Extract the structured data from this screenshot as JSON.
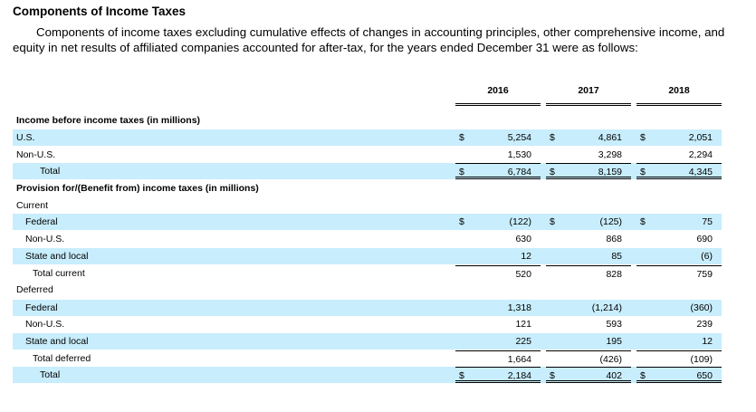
{
  "title": "Components of Income Taxes",
  "intro": "Components of income taxes excluding cumulative effects of changes in accounting principles, other comprehensive income, and equity in net results of affiliated companies accounted for after-tax, for the years ended December 31 were as follows:",
  "years": [
    "2016",
    "2017",
    "2018"
  ],
  "colors": {
    "highlight": "#c8edfc"
  },
  "rows": [
    {
      "label": "Income before income taxes (in millions)",
      "style": "bold",
      "hl": false,
      "values": []
    },
    {
      "label": "U.S.",
      "hl": true,
      "currency": "$",
      "values": [
        "5,254",
        "4,861",
        "2,051"
      ]
    },
    {
      "label": "Non-U.S.",
      "hl": false,
      "values": [
        "1,530",
        "3,298",
        "2,294"
      ]
    },
    {
      "label": "Total",
      "indent": 3,
      "hl": true,
      "currency": "$",
      "values": [
        "6,784",
        "8,159",
        "4,345"
      ],
      "line_above": true,
      "double_below": true
    },
    {
      "label": "Provision for/(Benefit from) income taxes (in millions)",
      "style": "bold",
      "hl": false,
      "values": []
    },
    {
      "label": "Current",
      "hl": false,
      "values": []
    },
    {
      "label": "Federal",
      "indent": 1,
      "hl": true,
      "currency": "$",
      "values": [
        "(122)",
        "(125)",
        "75"
      ]
    },
    {
      "label": "Non-U.S.",
      "indent": 1,
      "hl": false,
      "values": [
        "630",
        "868",
        "690"
      ]
    },
    {
      "label": "State and local",
      "indent": 1,
      "hl": true,
      "values": [
        "12",
        "85",
        "(6)"
      ]
    },
    {
      "label": "Total current",
      "indent": 2,
      "hl": false,
      "values": [
        "520",
        "828",
        "759"
      ],
      "line_above": true
    },
    {
      "label": "Deferred",
      "hl": false,
      "values": []
    },
    {
      "label": "Federal",
      "indent": 1,
      "hl": true,
      "values": [
        "1,318",
        "(1,214)",
        "(360)"
      ]
    },
    {
      "label": "Non-U.S.",
      "indent": 1,
      "hl": false,
      "values": [
        "121",
        "593",
        "239"
      ]
    },
    {
      "label": "State and local",
      "indent": 1,
      "hl": true,
      "values": [
        "225",
        "195",
        "12"
      ]
    },
    {
      "label": "Total deferred",
      "indent": 2,
      "hl": false,
      "values": [
        "1,664",
        "(426)",
        "(109)"
      ],
      "line_above": true
    },
    {
      "label": "Total",
      "indent": 3,
      "hl": true,
      "currency": "$",
      "values": [
        "2,184",
        "402",
        "650"
      ],
      "line_above": true,
      "double_below": true
    }
  ]
}
